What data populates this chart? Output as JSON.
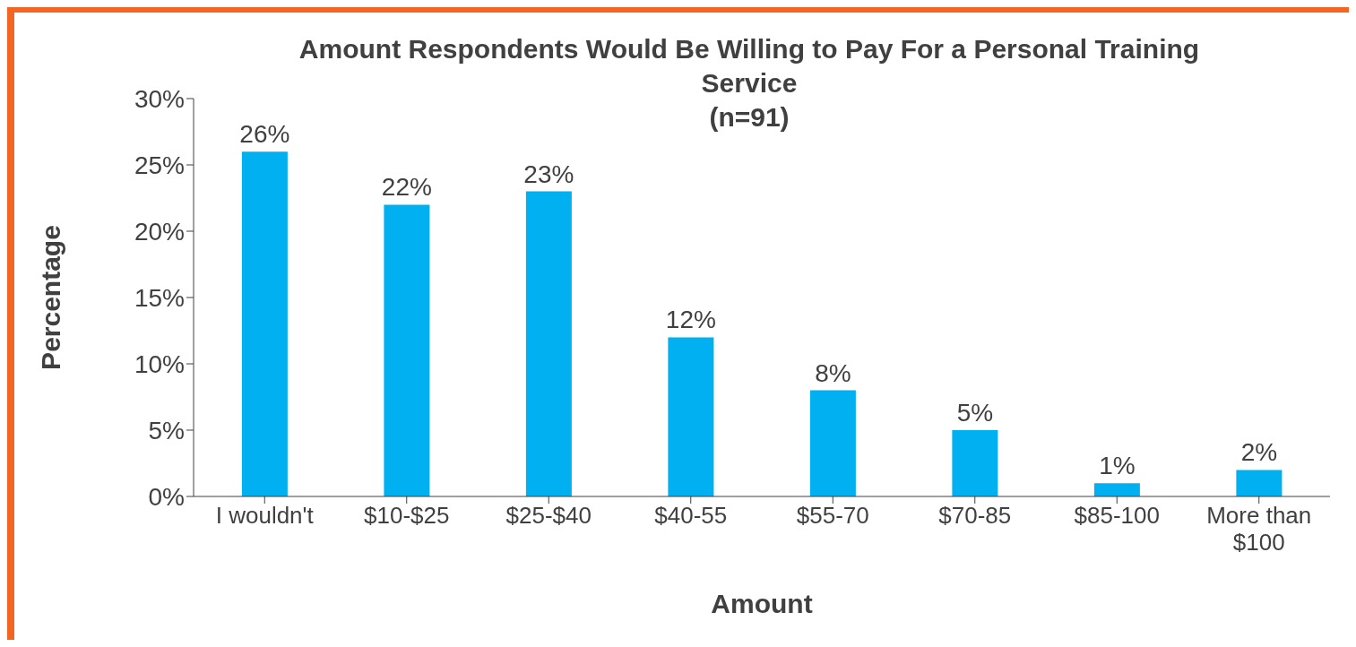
{
  "chart_data": {
    "type": "bar",
    "title": "Amount Respondents Would Be Willing to Pay For a Personal Training Service",
    "subtitle": "(n=91)",
    "xlabel": "Amount",
    "ylabel": "Percentage",
    "categories": [
      "I wouldn't",
      "$10-$25",
      "$25-$40",
      "$40-55",
      "$55-70",
      "$70-85",
      "$85-100",
      "More than $100"
    ],
    "values": [
      26,
      22,
      23,
      12,
      8,
      5,
      1,
      2
    ],
    "color": "#00b0f0",
    "value_labels": [
      "26%",
      "22%",
      "23%",
      "12%",
      "8%",
      "5%",
      "1%",
      "2%"
    ],
    "ylim": [
      0,
      30
    ],
    "yticks": [
      {
        "value": 0,
        "label": "0%"
      },
      {
        "value": 5,
        "label": "5%"
      },
      {
        "value": 10,
        "label": "10%"
      },
      {
        "value": 15,
        "label": "15%"
      },
      {
        "value": 20,
        "label": "20%"
      },
      {
        "value": 25,
        "label": "25%"
      },
      {
        "value": 30,
        "label": "30%"
      }
    ],
    "grid": false,
    "legend": false
  }
}
